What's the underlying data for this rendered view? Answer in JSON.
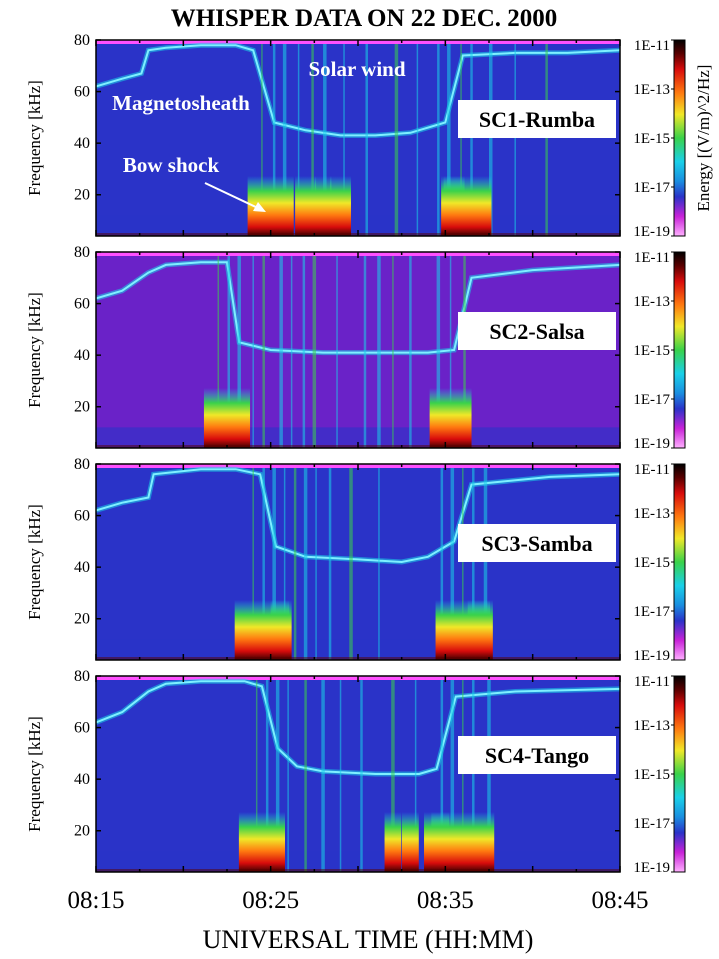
{
  "page": {
    "title": "WHISPER DATA ON 22 DEC. 2000",
    "xlabel": "UNIVERSAL TIME (HH:MM)"
  },
  "colors": {
    "background_purple": "#6a22c8",
    "background_blue": "#2a33c8",
    "cyan": "#1ad0e8",
    "green": "#3ad24a",
    "yellow": "#f0e828",
    "orange": "#ff7a10",
    "red": "#d80c0c",
    "darkred": "#5a0000",
    "top_band": "#ff50ff"
  },
  "chart_data": [
    {
      "type": "heatmap",
      "name": "SC1-Rumba",
      "ylabel": "Frequency [kHz]",
      "yticks": [
        20,
        40,
        60,
        80
      ],
      "ylim": [
        4,
        80
      ],
      "xlim": [
        "08:15",
        "08:45"
      ],
      "xtick_labels": [
        "08:15",
        "08:25",
        "08:35",
        "08:45"
      ],
      "colorbar_label": "Energy [(V/m)^2/Hz]",
      "colorbar_ticks": [
        "1E-11",
        "1E-13",
        "1E-15",
        "1E-17",
        "1E-19"
      ],
      "colorbar_scale": "log",
      "base": "blue",
      "annotations": [
        "Solar wind",
        "Magnetosheath",
        "Bow shock"
      ],
      "plasma_line_khz": [
        [
          0,
          62
        ],
        [
          1.5,
          65
        ],
        [
          2.6,
          67
        ],
        [
          3.0,
          76
        ],
        [
          4.0,
          77
        ],
        [
          6.0,
          78
        ],
        [
          8.0,
          78
        ],
        [
          9.0,
          76
        ],
        [
          10.2,
          48
        ],
        [
          12.0,
          45
        ],
        [
          14.0,
          43
        ],
        [
          16.0,
          43
        ],
        [
          18.0,
          44
        ],
        [
          20.0,
          48
        ],
        [
          21.0,
          74
        ],
        [
          24.0,
          75
        ],
        [
          27.0,
          75
        ],
        [
          30.0,
          76
        ]
      ],
      "bursts_min": [
        [
          10,
          1.1
        ],
        [
          12,
          0.5
        ],
        [
          13,
          0.4
        ],
        [
          14,
          0.5
        ],
        [
          20.5,
          0.5
        ],
        [
          21.2,
          1.2
        ]
      ],
      "streaks_min": [
        9.5,
        10.2,
        10.8,
        11.6,
        12.4,
        13.1,
        14.2,
        15.5,
        17.2,
        18.4,
        19.6,
        20.2,
        20.9,
        21.5,
        22.6,
        24.0,
        25.8
      ]
    },
    {
      "type": "heatmap",
      "name": "SC2-Salsa",
      "ylabel": "Frequency [kHz]",
      "yticks": [
        20,
        40,
        60,
        80
      ],
      "ylim": [
        4,
        80
      ],
      "xlim": [
        "08:15",
        "08:45"
      ],
      "xtick_labels": [
        "08:15",
        "08:25",
        "08:35",
        "08:45"
      ],
      "colorbar_ticks": [
        "1E-11",
        "1E-13",
        "1E-15",
        "1E-17",
        "1E-19"
      ],
      "colorbar_scale": "log",
      "base": "purple",
      "annotations": [],
      "plasma_line_khz": [
        [
          0,
          62
        ],
        [
          1.5,
          65
        ],
        [
          3.0,
          72
        ],
        [
          4.0,
          75
        ],
        [
          6.0,
          76
        ],
        [
          7.5,
          76
        ],
        [
          8.2,
          45
        ],
        [
          10.0,
          42
        ],
        [
          13.0,
          41
        ],
        [
          16.0,
          41
        ],
        [
          19.0,
          41
        ],
        [
          20.5,
          42
        ],
        [
          21.5,
          70
        ],
        [
          25.0,
          73
        ],
        [
          30.0,
          75
        ]
      ],
      "bursts_min": [
        [
          7.5,
          1.1
        ],
        [
          20.3,
          1.0
        ]
      ],
      "streaks_min": [
        7.0,
        7.6,
        8.2,
        9.0,
        9.6,
        10.6,
        11.2,
        11.9,
        12.5,
        13.8,
        15.4,
        16.2,
        17.0,
        18.0,
        19.6,
        20.3,
        21.1
      ]
    },
    {
      "type": "heatmap",
      "name": "SC3-Samba",
      "ylabel": "Frequency [kHz]",
      "yticks": [
        20,
        40,
        60,
        80
      ],
      "ylim": [
        4,
        80
      ],
      "xlim": [
        "08:15",
        "08:45"
      ],
      "xtick_labels": [
        "08:15",
        "08:25",
        "08:35",
        "08:45"
      ],
      "colorbar_ticks": [
        "1E-11",
        "1E-13",
        "1E-15",
        "1E-17",
        "1E-19"
      ],
      "colorbar_scale": "log",
      "base": "blue",
      "annotations": [],
      "plasma_line_khz": [
        [
          0,
          62
        ],
        [
          1.5,
          65
        ],
        [
          3.0,
          67
        ],
        [
          3.3,
          76
        ],
        [
          6.0,
          78
        ],
        [
          8.0,
          78
        ],
        [
          9.4,
          76
        ],
        [
          10.3,
          48
        ],
        [
          12.0,
          44
        ],
        [
          15.0,
          43
        ],
        [
          17.5,
          42
        ],
        [
          19.0,
          44
        ],
        [
          20.5,
          50
        ],
        [
          21.5,
          72
        ],
        [
          26.0,
          75
        ],
        [
          30.0,
          76
        ]
      ],
      "bursts_min": [
        [
          9.5,
          1.3
        ],
        [
          10.6,
          0.5
        ],
        [
          21.0,
          1.3
        ],
        [
          22.0,
          0.6
        ]
      ],
      "streaks_min": [
        9.0,
        9.6,
        10.2,
        10.8,
        11.4,
        12.0,
        12.6,
        13.4,
        14.6,
        16.2,
        19.8,
        20.4,
        21.0,
        21.6,
        22.3
      ]
    },
    {
      "type": "heatmap",
      "name": "SC4-Tango",
      "ylabel": "Frequency [kHz]",
      "yticks": [
        20,
        40,
        60,
        80
      ],
      "ylim": [
        4,
        80
      ],
      "xlim": [
        "08:15",
        "08:45"
      ],
      "xtick_labels": [
        "08:15",
        "08:25",
        "08:35",
        "08:45"
      ],
      "colorbar_ticks": [
        "1E-11",
        "1E-13",
        "1E-15",
        "1E-17",
        "1E-19"
      ],
      "colorbar_scale": "log",
      "base": "blue",
      "annotations": [],
      "plasma_line_khz": [
        [
          0,
          62
        ],
        [
          1.5,
          66
        ],
        [
          3.0,
          74
        ],
        [
          4.0,
          77
        ],
        [
          6.0,
          78
        ],
        [
          8.5,
          78
        ],
        [
          9.5,
          76
        ],
        [
          10.4,
          52
        ],
        [
          11.5,
          45
        ],
        [
          13.0,
          43
        ],
        [
          16.0,
          42
        ],
        [
          18.5,
          42
        ],
        [
          19.5,
          44
        ],
        [
          20.6,
          72
        ],
        [
          24.0,
          74
        ],
        [
          30.0,
          75
        ]
      ],
      "bursts_min": [
        [
          9.5,
          1.1
        ],
        [
          17.0,
          0.4
        ],
        [
          18.0,
          0.4
        ],
        [
          19.5,
          0.6
        ],
        [
          21.0,
          1.5
        ]
      ],
      "streaks_min": [
        9.2,
        9.8,
        10.4,
        11.0,
        12.0,
        13.0,
        14.0,
        15.2,
        17.0,
        18.3,
        19.8,
        20.4,
        21.0,
        21.6,
        22.5
      ]
    }
  ]
}
